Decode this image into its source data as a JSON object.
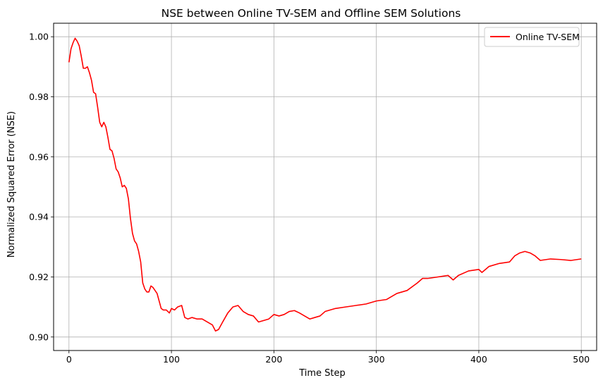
{
  "chart_data": {
    "type": "line",
    "title": "NSE between Online TV-SEM and Offline SEM Solutions",
    "xlabel": "Time Step",
    "ylabel": "Normalized Squared Error (NSE)",
    "xlim": [
      -15,
      515
    ],
    "ylim": [
      0.8955,
      1.0045
    ],
    "xticks": [
      0,
      100,
      200,
      300,
      400,
      500
    ],
    "yticks": [
      0.9,
      0.92,
      0.94,
      0.96,
      0.98,
      1.0
    ],
    "xtick_labels": [
      "0",
      "100",
      "200",
      "300",
      "400",
      "500"
    ],
    "ytick_labels": [
      "0.90",
      "0.92",
      "0.94",
      "0.96",
      "0.98",
      "1.00"
    ],
    "grid": true,
    "legend_position": "top-right",
    "series": [
      {
        "name": "Online TV-SEM",
        "color": "#ff0000",
        "x": [
          0,
          2,
          4,
          6,
          8,
          10,
          12,
          14,
          16,
          18,
          20,
          22,
          24,
          26,
          28,
          30,
          32,
          34,
          36,
          38,
          40,
          42,
          44,
          46,
          48,
          50,
          52,
          54,
          56,
          58,
          60,
          62,
          64,
          66,
          68,
          70,
          72,
          74,
          76,
          78,
          80,
          82,
          84,
          86,
          88,
          90,
          92,
          95,
          98,
          100,
          103,
          106,
          110,
          113,
          116,
          120,
          125,
          130,
          135,
          140,
          143,
          146,
          150,
          155,
          160,
          165,
          170,
          175,
          180,
          185,
          190,
          195,
          200,
          205,
          210,
          215,
          220,
          225,
          230,
          235,
          240,
          245,
          250,
          255,
          260,
          270,
          280,
          290,
          300,
          310,
          320,
          330,
          340,
          345,
          350,
          360,
          370,
          375,
          380,
          390,
          400,
          403,
          410,
          420,
          430,
          435,
          440,
          445,
          450,
          455,
          460,
          470,
          480,
          490,
          500
        ],
        "values": [
          0.9915,
          0.996,
          0.998,
          0.9995,
          0.9985,
          0.997,
          0.9935,
          0.9895,
          0.9895,
          0.99,
          0.988,
          0.9855,
          0.9815,
          0.981,
          0.9765,
          0.9715,
          0.97,
          0.9715,
          0.97,
          0.9665,
          0.9625,
          0.962,
          0.9595,
          0.956,
          0.955,
          0.953,
          0.95,
          0.9505,
          0.9495,
          0.946,
          0.9395,
          0.9345,
          0.932,
          0.931,
          0.9285,
          0.925,
          0.918,
          0.916,
          0.915,
          0.915,
          0.917,
          0.9165,
          0.9155,
          0.9145,
          0.912,
          0.9095,
          0.909,
          0.909,
          0.908,
          0.9095,
          0.909,
          0.91,
          0.9105,
          0.9065,
          0.906,
          0.9065,
          0.906,
          0.906,
          0.905,
          0.904,
          0.902,
          0.9025,
          0.905,
          0.908,
          0.91,
          0.9105,
          0.9085,
          0.9075,
          0.907,
          0.905,
          0.9055,
          0.906,
          0.9075,
          0.907,
          0.9075,
          0.9085,
          0.9088,
          0.908,
          0.907,
          0.906,
          0.9065,
          0.907,
          0.9085,
          0.909,
          0.9095,
          0.91,
          0.9105,
          0.911,
          0.912,
          0.9125,
          0.9145,
          0.9155,
          0.918,
          0.9195,
          0.9195,
          0.92,
          0.9205,
          0.919,
          0.9205,
          0.922,
          0.9225,
          0.9215,
          0.9235,
          0.9245,
          0.925,
          0.927,
          0.928,
          0.9285,
          0.928,
          0.927,
          0.9255,
          0.926,
          0.9258,
          0.9255,
          0.926
        ]
      }
    ]
  }
}
